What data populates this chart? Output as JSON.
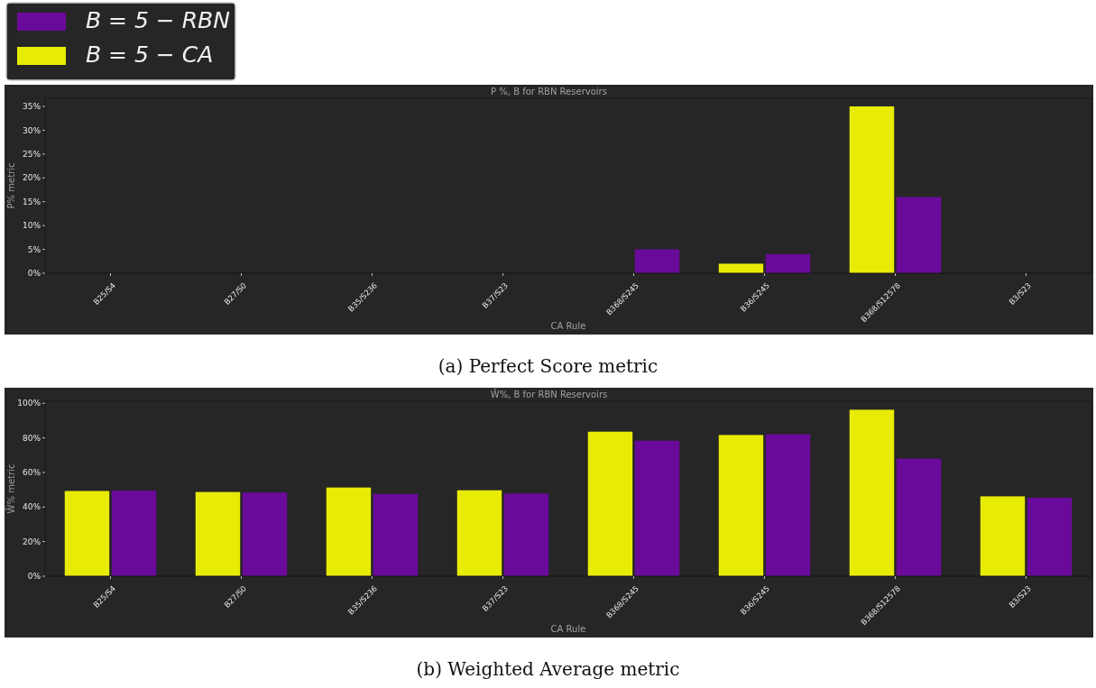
{
  "chart_data": [
    {
      "type": "bar",
      "title": "P %, B for RBN Reservoirs",
      "xlabel": "CA Rule",
      "ylabel": "P% metric",
      "annotations": [
        "(a) Perfect Score metric"
      ],
      "categories": [
        "B25/S4",
        "B27/S0",
        "B35/S236",
        "B37/S23",
        "B368/S245",
        "B36/S245",
        "B368/S12578",
        "B3/S23"
      ],
      "series": [
        {
          "name": "B = 5 − CA",
          "color": "#e8eb05",
          "values": [
            0,
            0,
            0,
            0,
            0,
            2,
            35,
            0
          ]
        },
        {
          "name": "B = 5 − RBN",
          "color": "#6a0a9a",
          "values": [
            0,
            0,
            0,
            0,
            5,
            4,
            16,
            0
          ]
        }
      ],
      "ylim": [
        0,
        36.7
      ],
      "yticks": [
        {
          "value": 0,
          "label": "0%"
        },
        {
          "value": 5,
          "label": "5%"
        },
        {
          "value": 10,
          "label": "10%"
        },
        {
          "value": 15,
          "label": "15%"
        },
        {
          "value": 20,
          "label": "20%"
        },
        {
          "value": 25,
          "label": "25%"
        },
        {
          "value": 30,
          "label": "30%"
        },
        {
          "value": 35,
          "label": "35%"
        }
      ],
      "grid": false,
      "legend": "top left"
    },
    {
      "type": "bar",
      "title": "W̄%, B for RBN Reservoirs",
      "xlabel": "CA Rule",
      "ylabel": "W̄% metric",
      "annotations": [
        "(b) Weighted Average metric"
      ],
      "categories": [
        "B25/S4",
        "B27/S0",
        "B35/S236",
        "B37/S23",
        "B368/S245",
        "B36/S245",
        "B368/S12578",
        "B3/S23"
      ],
      "series": [
        {
          "color": "#e8eb05",
          "values": [
            49.3,
            48.7,
            51.3,
            49.7,
            83.6,
            81.7,
            96.3,
            46.2
          ]
        },
        {
          "color": "#6a0a9a",
          "values": [
            49.5,
            48.4,
            47.6,
            47.8,
            78.4,
            82.1,
            68.0,
            45.4
          ]
        }
      ],
      "ylim": [
        0,
        101.2
      ],
      "yticks": [
        {
          "value": 0,
          "label": "0%"
        },
        {
          "value": 20,
          "label": "20%"
        },
        {
          "value": 40,
          "label": "40%"
        },
        {
          "value": 60,
          "label": "60%"
        },
        {
          "value": 80,
          "label": "80%"
        },
        {
          "value": 100,
          "label": "100%"
        }
      ],
      "grid": false,
      "legend": false
    }
  ]
}
